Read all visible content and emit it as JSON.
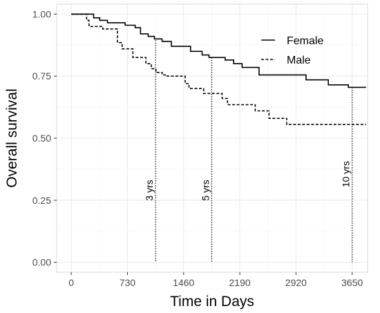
{
  "chart_data": {
    "type": "line",
    "step": true,
    "xlabel": "Time in Days",
    "ylabel": "Overall survival",
    "xlim": [
      -190,
      3850
    ],
    "ylim": [
      -0.04,
      1.04
    ],
    "xticks": [
      0,
      730,
      1460,
      2190,
      2920,
      3650
    ],
    "yticks": [
      0.0,
      0.25,
      0.5,
      0.75,
      1.0
    ],
    "ytick_labels": [
      "0.00",
      "0.25",
      "0.50",
      "0.75",
      "1.00"
    ],
    "grid": true,
    "legend_position": "top-right",
    "series": [
      {
        "name": "Female",
        "line_style": "solid",
        "x": [
          0,
          290,
          370,
          470,
          700,
          830,
          900,
          1000,
          1080,
          1180,
          1300,
          1550,
          1700,
          1790,
          2000,
          2110,
          2220,
          2440,
          2950,
          3050,
          3340,
          3600,
          3830
        ],
        "y": [
          1.0,
          0.985,
          0.975,
          0.965,
          0.955,
          0.945,
          0.92,
          0.91,
          0.9,
          0.89,
          0.87,
          0.85,
          0.835,
          0.825,
          0.815,
          0.8,
          0.785,
          0.755,
          0.755,
          0.735,
          0.715,
          0.705,
          0.705
        ]
      },
      {
        "name": "Male",
        "line_style": "dashed",
        "x": [
          0,
          200,
          230,
          410,
          600,
          660,
          800,
          970,
          1040,
          1100,
          1180,
          1220,
          1480,
          1530,
          1720,
          1960,
          2030,
          2390,
          2570,
          2800,
          3830
        ],
        "y": [
          1.0,
          0.975,
          0.95,
          0.94,
          0.885,
          0.86,
          0.825,
          0.8,
          0.78,
          0.765,
          0.755,
          0.75,
          0.72,
          0.7,
          0.68,
          0.66,
          0.635,
          0.61,
          0.58,
          0.555,
          0.555
        ]
      }
    ],
    "annotations": [
      {
        "label": "3 yrs",
        "x": 1095,
        "y_top": 0.895
      },
      {
        "label": "5 yrs",
        "x": 1825,
        "y_top": 0.825
      },
      {
        "label": "10 yrs",
        "x": 3650,
        "y_top": 0.705
      }
    ],
    "colors": {
      "axis_line": "#000000",
      "grid_major": "#ebebeb",
      "grid_minor": "#f5f5f5",
      "panel_border": "#d9d9d9",
      "tick_text": "#4d4d4d"
    }
  }
}
